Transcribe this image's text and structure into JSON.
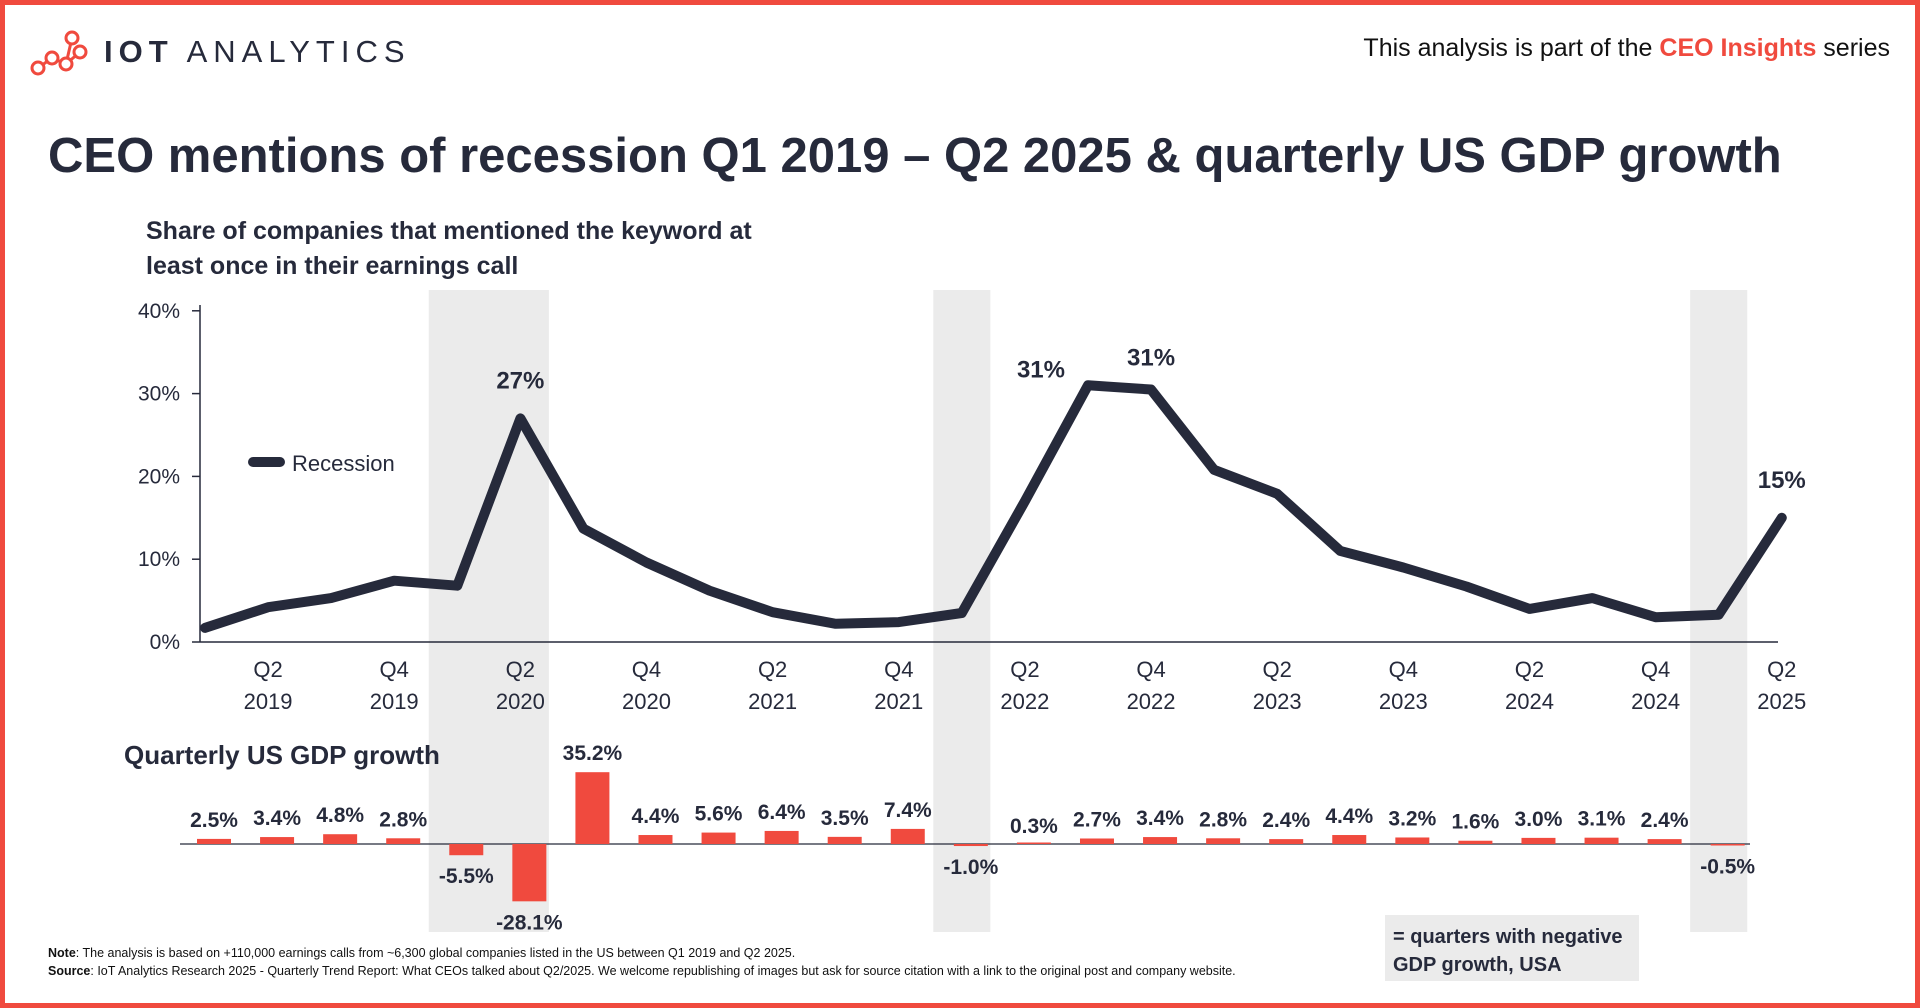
{
  "header": {
    "logo_text_bold": "IOT",
    "logo_text_rest": "ANALYTICS",
    "series_prefix": "This analysis is part of the ",
    "series_highlight": "CEO Insights",
    "series_suffix": " series",
    "title": "CEO mentions of recession Q1 2019 – Q2 2025 & quarterly US GDP growth",
    "subtitle": "Share of companies that mentioned the keyword at least once in their earnings call"
  },
  "colors": {
    "line": "#262a3b",
    "bar": "#f04a3e",
    "shade": "#ebebeb",
    "accent": "#f04a3e"
  },
  "chart_data": [
    {
      "type": "line",
      "title": "Share of companies that mentioned the keyword at least once in their earnings call",
      "quarters": [
        "Q1 2019",
        "Q2 2019",
        "Q3 2019",
        "Q4 2019",
        "Q1 2020",
        "Q2 2020",
        "Q3 2020",
        "Q4 2020",
        "Q1 2021",
        "Q2 2021",
        "Q3 2021",
        "Q4 2021",
        "Q1 2022",
        "Q2 2022",
        "Q3 2022",
        "Q4 2022",
        "Q1 2023",
        "Q2 2023",
        "Q3 2023",
        "Q4 2023",
        "Q1 2024",
        "Q2 2024",
        "Q3 2024",
        "Q4 2024",
        "Q1 2025",
        "Q2 2025"
      ],
      "series": [
        {
          "name": "Recession",
          "values": [
            1.7,
            4.2,
            5.3,
            7.4,
            6.8,
            27,
            13.7,
            9.6,
            6.2,
            3.6,
            2.2,
            2.4,
            3.5,
            17,
            31,
            30.5,
            20.8,
            17.9,
            11.0,
            9.0,
            6.7,
            4.0,
            5.3,
            3.0,
            3.3,
            15
          ]
        }
      ],
      "point_labels": [
        {
          "index": 5,
          "text": "27%"
        },
        {
          "index": 14,
          "text": "31%"
        },
        {
          "index": 15,
          "text": "31%"
        },
        {
          "index": 25,
          "text": "15%"
        }
      ],
      "x_tick_labels": [
        {
          "index": 1,
          "q": "Q2",
          "year": "2019"
        },
        {
          "index": 3,
          "q": "Q4",
          "year": "2019"
        },
        {
          "index": 5,
          "q": "Q2",
          "year": "2020"
        },
        {
          "index": 7,
          "q": "Q4",
          "year": "2020"
        },
        {
          "index": 9,
          "q": "Q2",
          "year": "2021"
        },
        {
          "index": 11,
          "q": "Q4",
          "year": "2021"
        },
        {
          "index": 13,
          "q": "Q2",
          "year": "2022"
        },
        {
          "index": 15,
          "q": "Q4",
          "year": "2022"
        },
        {
          "index": 17,
          "q": "Q2",
          "year": "2023"
        },
        {
          "index": 19,
          "q": "Q4",
          "year": "2023"
        },
        {
          "index": 21,
          "q": "Q2",
          "year": "2024"
        },
        {
          "index": 23,
          "q": "Q4",
          "year": "2024"
        },
        {
          "index": 25,
          "q": "Q2",
          "year": "2025"
        }
      ],
      "y_ticks": [
        "0%",
        "10%",
        "20%",
        "30%",
        "40%"
      ],
      "ylim": [
        0,
        40
      ],
      "legend": "Recession",
      "legend_position": "left-middle",
      "negative_gdp_quarter_indices": [
        4,
        5,
        12,
        24
      ]
    },
    {
      "type": "bar",
      "title": "Quarterly US GDP growth",
      "quarters": [
        "Q1 2019",
        "Q2 2019",
        "Q3 2019",
        "Q4 2019",
        "Q1 2020",
        "Q2 2020",
        "Q3 2020",
        "Q4 2020",
        "Q1 2021",
        "Q2 2021",
        "Q3 2021",
        "Q4 2021",
        "Q1 2022",
        "Q2 2022",
        "Q3 2022",
        "Q4 2022",
        "Q1 2023",
        "Q2 2023",
        "Q3 2023",
        "Q4 2023",
        "Q1 2024",
        "Q2 2024",
        "Q3 2024",
        "Q4 2024",
        "Q1 2025"
      ],
      "values": [
        2.5,
        3.4,
        4.8,
        2.8,
        -5.5,
        -28.1,
        35.2,
        4.4,
        5.6,
        6.4,
        3.5,
        7.4,
        -1.0,
        0.3,
        2.7,
        3.4,
        2.8,
        2.4,
        4.4,
        3.2,
        1.6,
        3.0,
        3.1,
        2.4,
        -0.5
      ],
      "labels": [
        "2.5%",
        "3.4%",
        "4.8%",
        "2.8%",
        "-5.5%",
        "-28.1%",
        "35.2%",
        "4.4%",
        "5.6%",
        "6.4%",
        "3.5%",
        "7.4%",
        "-1.0%",
        "0.3%",
        "2.7%",
        "3.4%",
        "2.8%",
        "2.4%",
        "4.4%",
        "3.2%",
        "1.6%",
        "3.0%",
        "3.1%",
        "2.4%",
        "-0.5%"
      ]
    }
  ],
  "gdp_title": "Quarterly US GDP growth",
  "legend_box": "= quarters with negative GDP growth, USA",
  "notes": {
    "note_label": "Note",
    "note_text": ": The analysis is based on +110,000 earnings calls from ~6,300 global companies listed in the US between Q1 2019 and Q2 2025.",
    "source_label": "Source",
    "source_text": ": IoT Analytics Research 2025 - Quarterly Trend Report: What CEOs talked about Q2/2025. We welcome republishing of images but ask for source citation with a link to the original post and company website."
  }
}
